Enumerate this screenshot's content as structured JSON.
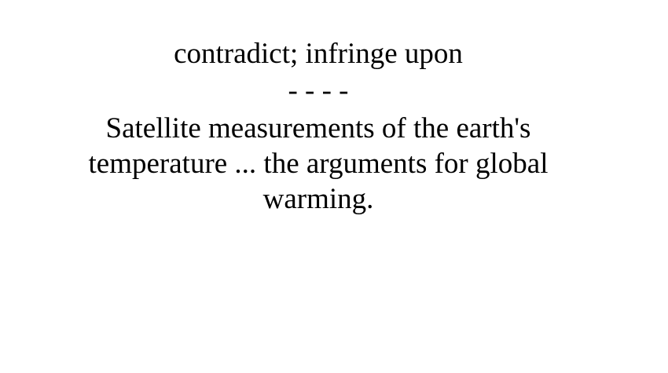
{
  "card": {
    "definition": "contradict; infringe upon",
    "separator": "- - - -",
    "sentence": "Satellite measurements of the earth's temperature ... the arguments for global warming."
  }
}
